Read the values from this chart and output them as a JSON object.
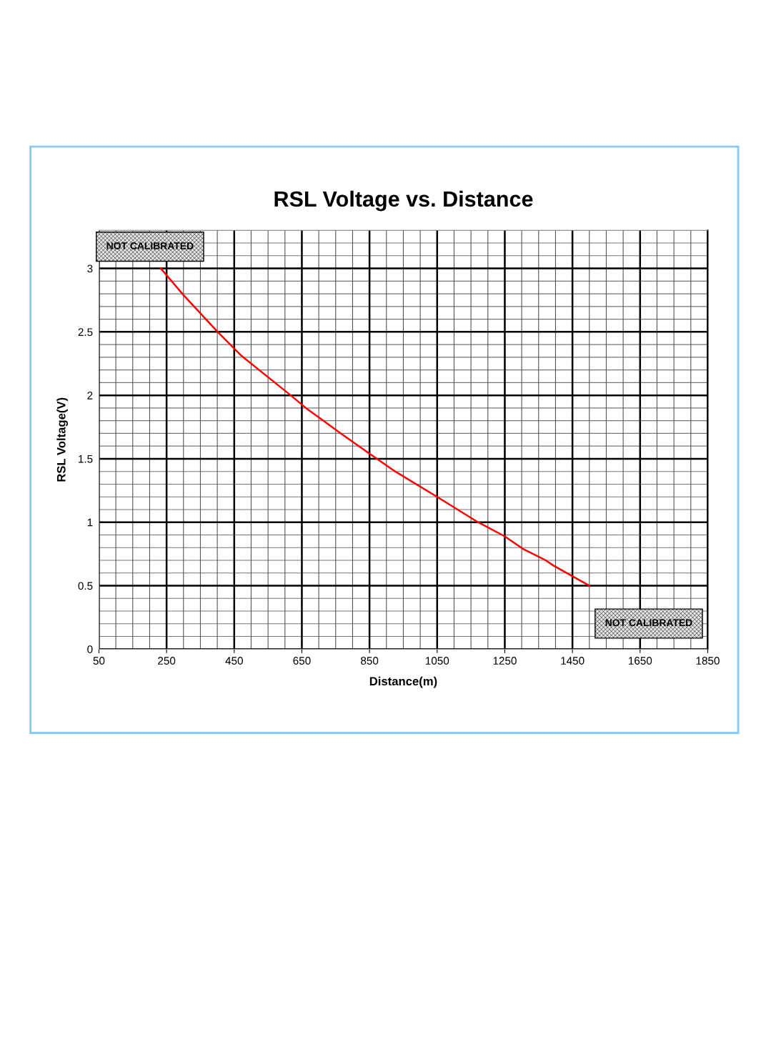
{
  "chart_data": {
    "type": "line",
    "title": "RSL Voltage vs. Distance",
    "xlabel": "Distance(m)",
    "ylabel": "RSL Voltage(V)",
    "x": [
      233,
      300,
      401,
      472,
      617,
      662,
      714,
      760,
      850,
      926,
      1050,
      1171,
      1249,
      1304,
      1371,
      1393,
      1500
    ],
    "series": [
      {
        "color": "#ff0000",
        "values": [
          3.0,
          2.79,
          2.5,
          2.31,
          2.0,
          1.9,
          1.8,
          1.71,
          1.54,
          1.4,
          1.2,
          1.0,
          0.89,
          0.79,
          0.7,
          0.66,
          0.5
        ]
      }
    ],
    "xlim": [
      50,
      1850
    ],
    "xticks": [
      50,
      250,
      450,
      650,
      850,
      1050,
      1250,
      1450,
      1650,
      1850
    ],
    "ylim": [
      0,
      3.3
    ],
    "yticks": [
      0,
      0.5,
      1,
      1.5,
      2,
      2.5,
      3
    ],
    "grid": true,
    "marker": "none",
    "line_style": "solid",
    "legend": false,
    "annotations": [
      "NOT CALIBRATED",
      "NOT CALIBRATED"
    ]
  }
}
